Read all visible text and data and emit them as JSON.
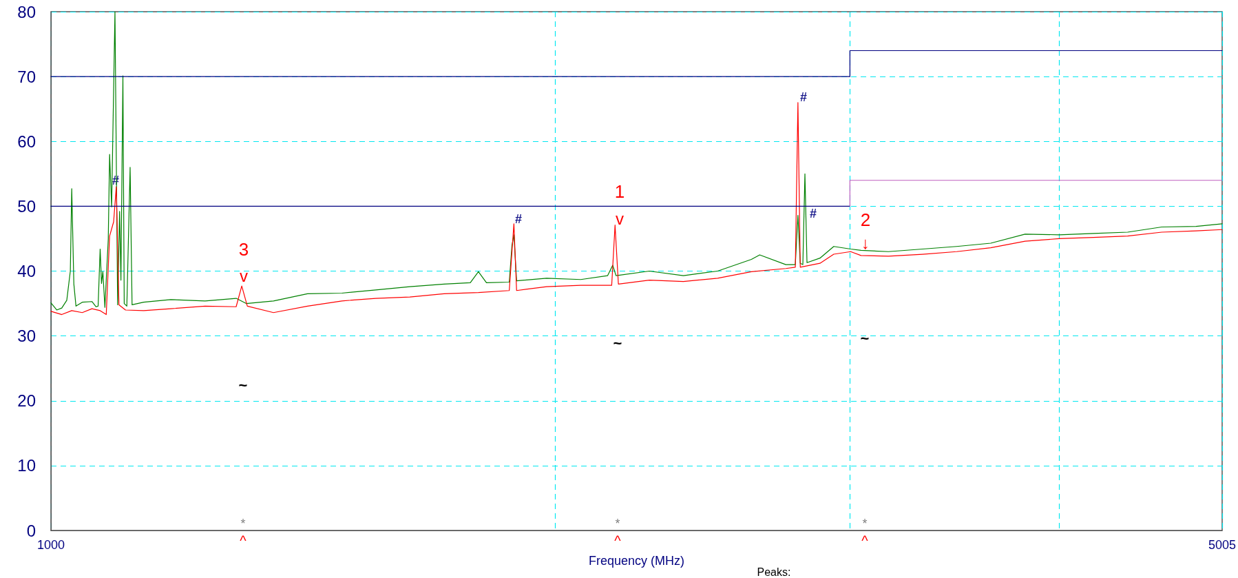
{
  "chart_data": {
    "type": "line",
    "xlabel": "Frequency (MHz)",
    "log": "x",
    "xlim": [
      1000,
      5005
    ],
    "xticks": [
      1000,
      {
        "value": 2000,
        "label": null
      },
      {
        "value": 3000,
        "label": null
      },
      {
        "value": 4000,
        "label": null
      },
      5005
    ],
    "ylim": [
      0,
      80
    ],
    "yticks": [
      0,
      10,
      20,
      30,
      40,
      50,
      60,
      70,
      80
    ],
    "grid": true,
    "marker": "none",
    "line_style": "solid",
    "series": [
      {
        "color": "#008000",
        "x": [
          1000,
          1008,
          1015,
          1022,
          1027,
          1029,
          1032,
          1035,
          1044,
          1058,
          1064,
          1067,
          1070,
          1072,
          1074,
          1077,
          1082,
          1084,
          1087,
          1092,
          1096,
          1099,
          1101,
          1104,
          1106,
          1110,
          1115,
          1118,
          1136,
          1179,
          1236,
          1290,
          1308,
          1358,
          1423,
          1492,
          1563,
          1638,
          1717,
          1780,
          1800,
          1820,
          1878,
          1885,
          1890,
          1897,
          1977,
          2072,
          2150,
          2165,
          2175,
          2277,
          2386,
          2501,
          2620,
          2650,
          2747,
          2783,
          2793,
          2802,
          2812,
          2820,
          2828,
          2879,
          2934,
          3003,
          3046,
          3163,
          3315,
          3474,
          3641,
          3817,
          4000,
          4193,
          4395,
          4606,
          4828,
          5005
        ],
        "values": [
          35.1,
          34,
          34.3,
          35.5,
          40,
          52.7,
          38,
          34.6,
          35.2,
          35.3,
          34.5,
          34.6,
          43.4,
          38.1,
          39.9,
          34.4,
          45,
          58,
          49.9,
          80,
          34.8,
          49.2,
          38.6,
          70.1,
          35,
          34.6,
          56,
          34.8,
          35.2,
          35.6,
          35.4,
          35.8,
          35,
          35.4,
          36.5,
          36.6,
          37.1,
          37.6,
          38,
          38.2,
          39.9,
          38.2,
          38.3,
          44,
          45.6,
          38.5,
          38.9,
          38.7,
          39.3,
          40.9,
          39.3,
          40,
          39.3,
          40,
          41.8,
          42.5,
          41,
          41,
          48.6,
          41.2,
          41,
          55,
          41.3,
          42,
          43.8,
          43.4,
          43.2,
          43,
          43.4,
          43.8,
          44.3,
          45.7,
          45.6,
          45.8,
          46,
          46.8,
          46.9,
          47.3
        ]
      },
      {
        "color": "#ff0000",
        "x": [
          1000,
          1015,
          1029,
          1044,
          1058,
          1070,
          1079,
          1084,
          1090,
          1094,
          1098,
          1108,
          1136,
          1179,
          1236,
          1290,
          1300,
          1310,
          1358,
          1423,
          1492,
          1563,
          1638,
          1717,
          1800,
          1878,
          1890,
          1897,
          1977,
          2072,
          2162,
          2172,
          2182,
          2277,
          2386,
          2501,
          2620,
          2747,
          2783,
          2793,
          2802,
          2879,
          2934,
          3003,
          3046,
          3163,
          3315,
          3474,
          3641,
          3817,
          4000,
          4193,
          4395,
          4606,
          4828,
          5005
        ],
        "values": [
          33.8,
          33.3,
          33.9,
          33.6,
          34.2,
          33.9,
          33.3,
          45.4,
          47.6,
          53,
          34.8,
          34,
          33.9,
          34.2,
          34.6,
          34.5,
          37.7,
          34.6,
          33.6,
          34.6,
          35.4,
          35.8,
          36,
          36.5,
          36.7,
          37,
          47.3,
          37,
          37.6,
          37.8,
          37.8,
          47.1,
          38,
          38.6,
          38.4,
          38.9,
          39.9,
          40.4,
          40.6,
          66,
          40.6,
          41.2,
          42.6,
          43,
          42.4,
          42.3,
          42.6,
          43,
          43.6,
          44.6,
          45,
          45.2,
          45.4,
          46,
          46.2,
          46.4
        ]
      },
      {
        "color": "#000080",
        "x": [
          1000,
          3000,
          3000,
          5005
        ],
        "values": [
          70,
          70,
          74,
          74
        ]
      },
      {
        "color": "#000080",
        "x": [
          1000,
          3000
        ],
        "values": [
          50,
          50
        ]
      },
      {
        "color": "#c060c0",
        "x": [
          3000,
          3000,
          5005
        ],
        "values": [
          50,
          54,
          54
        ]
      }
    ],
    "annotations": [
      "#",
      "#",
      "#",
      "#",
      "3",
      "1",
      "2",
      "v",
      "v",
      "↓",
      "~",
      "~",
      "~",
      "*",
      "*",
      "*",
      "^",
      "^",
      "^",
      "Peaks:"
    ]
  }
}
